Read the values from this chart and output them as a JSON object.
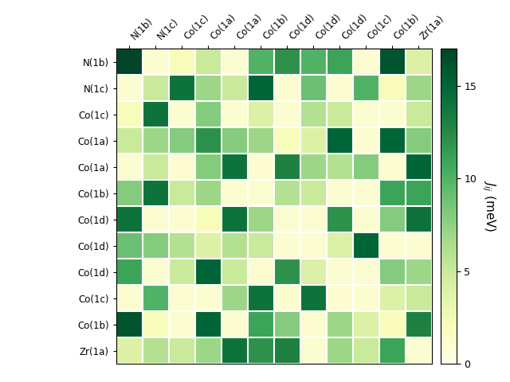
{
  "labels": [
    "N(1b)",
    "N(1c)",
    "Co(1c)",
    "Co(1a)",
    "Co(1a)",
    "Co(1b)",
    "Co(1d)",
    "Co(1d)",
    "Co(1d)",
    "Co(1c)",
    "Co(1b)",
    "Zr(1a)"
  ],
  "col_labels": [
    "N(1b)",
    "N(1c)",
    "Co(1c)",
    "Co(1a)",
    "Co(1a)",
    "Co(1b)",
    "Co(1d)",
    "Co(1d)",
    "Co(1d)",
    "Co(1c)",
    "Co(1b)",
    "Zr(1a)"
  ],
  "matrix": [
    [
      17,
      1,
      2,
      5,
      1,
      10,
      12,
      10,
      11,
      1,
      16,
      4
    ],
    [
      1,
      5,
      14,
      7,
      5,
      15,
      1,
      9,
      1,
      10,
      2,
      7
    ],
    [
      2,
      14,
      1,
      8,
      1,
      4,
      1,
      6,
      5,
      1,
      1,
      5
    ],
    [
      5,
      7,
      8,
      12,
      8,
      7,
      2,
      4,
      15,
      1,
      15,
      8
    ],
    [
      1,
      5,
      1,
      8,
      14,
      1,
      13,
      7,
      6,
      8,
      1,
      15
    ],
    [
      8,
      14,
      5,
      7,
      1,
      1,
      6,
      5,
      1,
      1,
      11,
      11
    ],
    [
      14,
      1,
      1,
      2,
      14,
      7,
      1,
      1,
      12,
      1,
      8,
      14
    ],
    [
      9,
      8,
      6,
      4,
      6,
      5,
      1,
      1,
      4,
      15,
      1,
      1
    ],
    [
      11,
      1,
      5,
      15,
      5,
      1,
      12,
      4,
      1,
      1,
      8,
      7
    ],
    [
      1,
      10,
      1,
      1,
      7,
      14,
      1,
      14,
      1,
      1,
      4,
      5
    ],
    [
      16,
      2,
      1,
      15,
      1,
      11,
      8,
      1,
      7,
      4,
      2,
      13
    ],
    [
      4,
      6,
      5,
      7,
      14,
      12,
      13,
      1,
      7,
      5,
      11,
      1
    ]
  ],
  "vmin": 0,
  "vmax": 17,
  "cmap": "YlGn",
  "colorbar_label": "$J_{ij}$ (meV)",
  "colorbar_ticks": [
    0,
    5,
    10,
    15
  ],
  "figsize": [
    6.4,
    4.8
  ],
  "dpi": 100
}
